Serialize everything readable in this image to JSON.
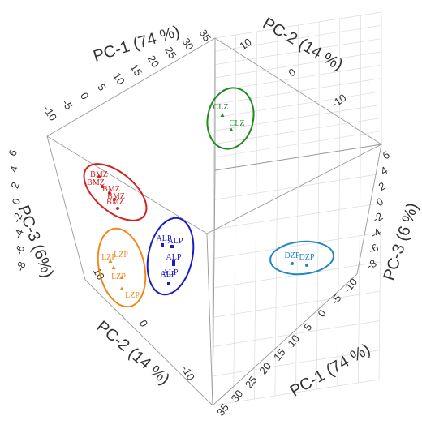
{
  "chart_data": {
    "type": "scatter",
    "projection": "3d",
    "axes": {
      "pc1": {
        "label": "PC-1 (74 %)",
        "ticks": [
          "-10",
          "-5",
          "0",
          "5",
          "10",
          "15",
          "20",
          "25",
          "30",
          "35"
        ],
        "range": [
          -10,
          35
        ]
      },
      "pc2": {
        "label": "PC-2 (14 %)",
        "ticks_top": [
          "10",
          "0",
          "-10"
        ],
        "ticks_bottom": [
          "10",
          "0",
          "-10"
        ],
        "range": [
          -10,
          10
        ]
      },
      "pc3": {
        "label_left": "PC-3 (6%)",
        "label_right": "PC-3 (6 %)",
        "ticks": [
          "-8",
          "-6",
          "-4",
          "-2",
          "0",
          "2",
          "4",
          "6"
        ],
        "range": [
          -8,
          6
        ]
      }
    },
    "grid": true,
    "series": [
      {
        "name": "BMZ",
        "color": "#d42020",
        "labels": [
          "BMZ",
          "BMZ",
          "BMZ",
          "BMZ",
          "BMZ"
        ]
      },
      {
        "name": "CLZ",
        "color": "#1f8a1f",
        "labels": [
          "CLZ",
          "CLZ"
        ]
      },
      {
        "name": "ALP",
        "color": "#1c1cc4",
        "labels": [
          "ALP",
          "ALP",
          "ALP",
          "ALP",
          "ALP"
        ]
      },
      {
        "name": "LZP",
        "color": "#f0891c",
        "labels": [
          "LZP",
          "LZP",
          "LZP",
          "LZP"
        ]
      },
      {
        "name": "DZP",
        "color": "#2386c4",
        "labels": [
          "DZP",
          "DZP"
        ]
      }
    ]
  }
}
